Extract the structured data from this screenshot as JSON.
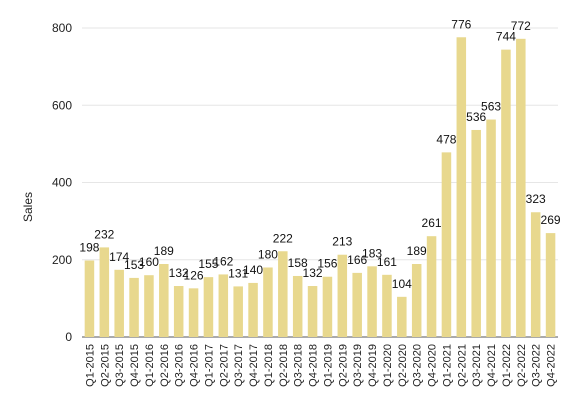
{
  "chart_data": {
    "type": "bar",
    "title": "",
    "xlabel": "",
    "ylabel": "Sales",
    "ylim": [
      0,
      800
    ],
    "yticks": [
      0,
      200,
      400,
      600,
      800
    ],
    "grid": true,
    "legend": "none",
    "bar_color": "#E8D88E",
    "grid_color": "#E6E6E6",
    "categories": [
      "Q1-2015",
      "Q2-2015",
      "Q3-2015",
      "Q4-2015",
      "Q1-2016",
      "Q2-2016",
      "Q3-2016",
      "Q4-2016",
      "Q1-2017",
      "Q2-2017",
      "Q3-2017",
      "Q4-2017",
      "Q1-2018",
      "Q2-2018",
      "Q3-2018",
      "Q4-2018",
      "Q1-2019",
      "Q2-2019",
      "Q3-2019",
      "Q4-2019",
      "Q1-2020",
      "Q2-2020",
      "Q3-2020",
      "Q4-2020",
      "Q1-2021",
      "Q2-2021",
      "Q3-2021",
      "Q4-2021",
      "Q1-2022",
      "Q2-2022",
      "Q3-2022",
      "Q4-2022"
    ],
    "values": [
      198,
      232,
      174,
      153,
      160,
      189,
      132,
      126,
      155,
      162,
      131,
      140,
      180,
      222,
      158,
      132,
      156,
      213,
      166,
      183,
      161,
      104,
      189,
      261,
      478,
      776,
      536,
      563,
      744,
      772,
      323,
      269
    ],
    "data_labels": [
      "198",
      "232",
      "174",
      "153",
      "160",
      "189",
      "132",
      "126",
      "155",
      "162",
      "131",
      "140",
      "180",
      "222",
      "158",
      "132",
      "156",
      "213",
      "166",
      "183",
      "161",
      "104",
      "189",
      "261",
      "478",
      "776",
      "536",
      "563",
      "744",
      "772",
      "323",
      "269"
    ]
  }
}
